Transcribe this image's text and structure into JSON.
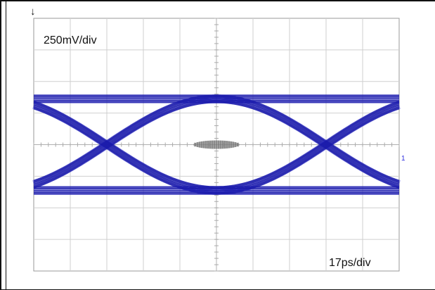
{
  "chart_data": {
    "type": "eye-diagram",
    "title": "",
    "xlabel": "",
    "ylabel": "",
    "annotations": {
      "vertical_scale": "250mV/div",
      "horizontal_scale": "17ps/div",
      "top_marker": "↓",
      "right_marker": "1"
    },
    "grid": {
      "horizontal_divisions": 10,
      "vertical_divisions": 8,
      "minor_ticks_per_division": 5
    },
    "x_range_divisions": [
      0,
      10
    ],
    "y_range_divisions": [
      -4,
      4
    ],
    "levels_divisions": {
      "high": 1.45,
      "low": -1.45
    },
    "crossings_divisions": [
      2,
      8
    ],
    "trace_color": "#1a1aa8",
    "trace_edge_color": "#2d2de0",
    "center_artifact_color": "#8a8a8a"
  }
}
